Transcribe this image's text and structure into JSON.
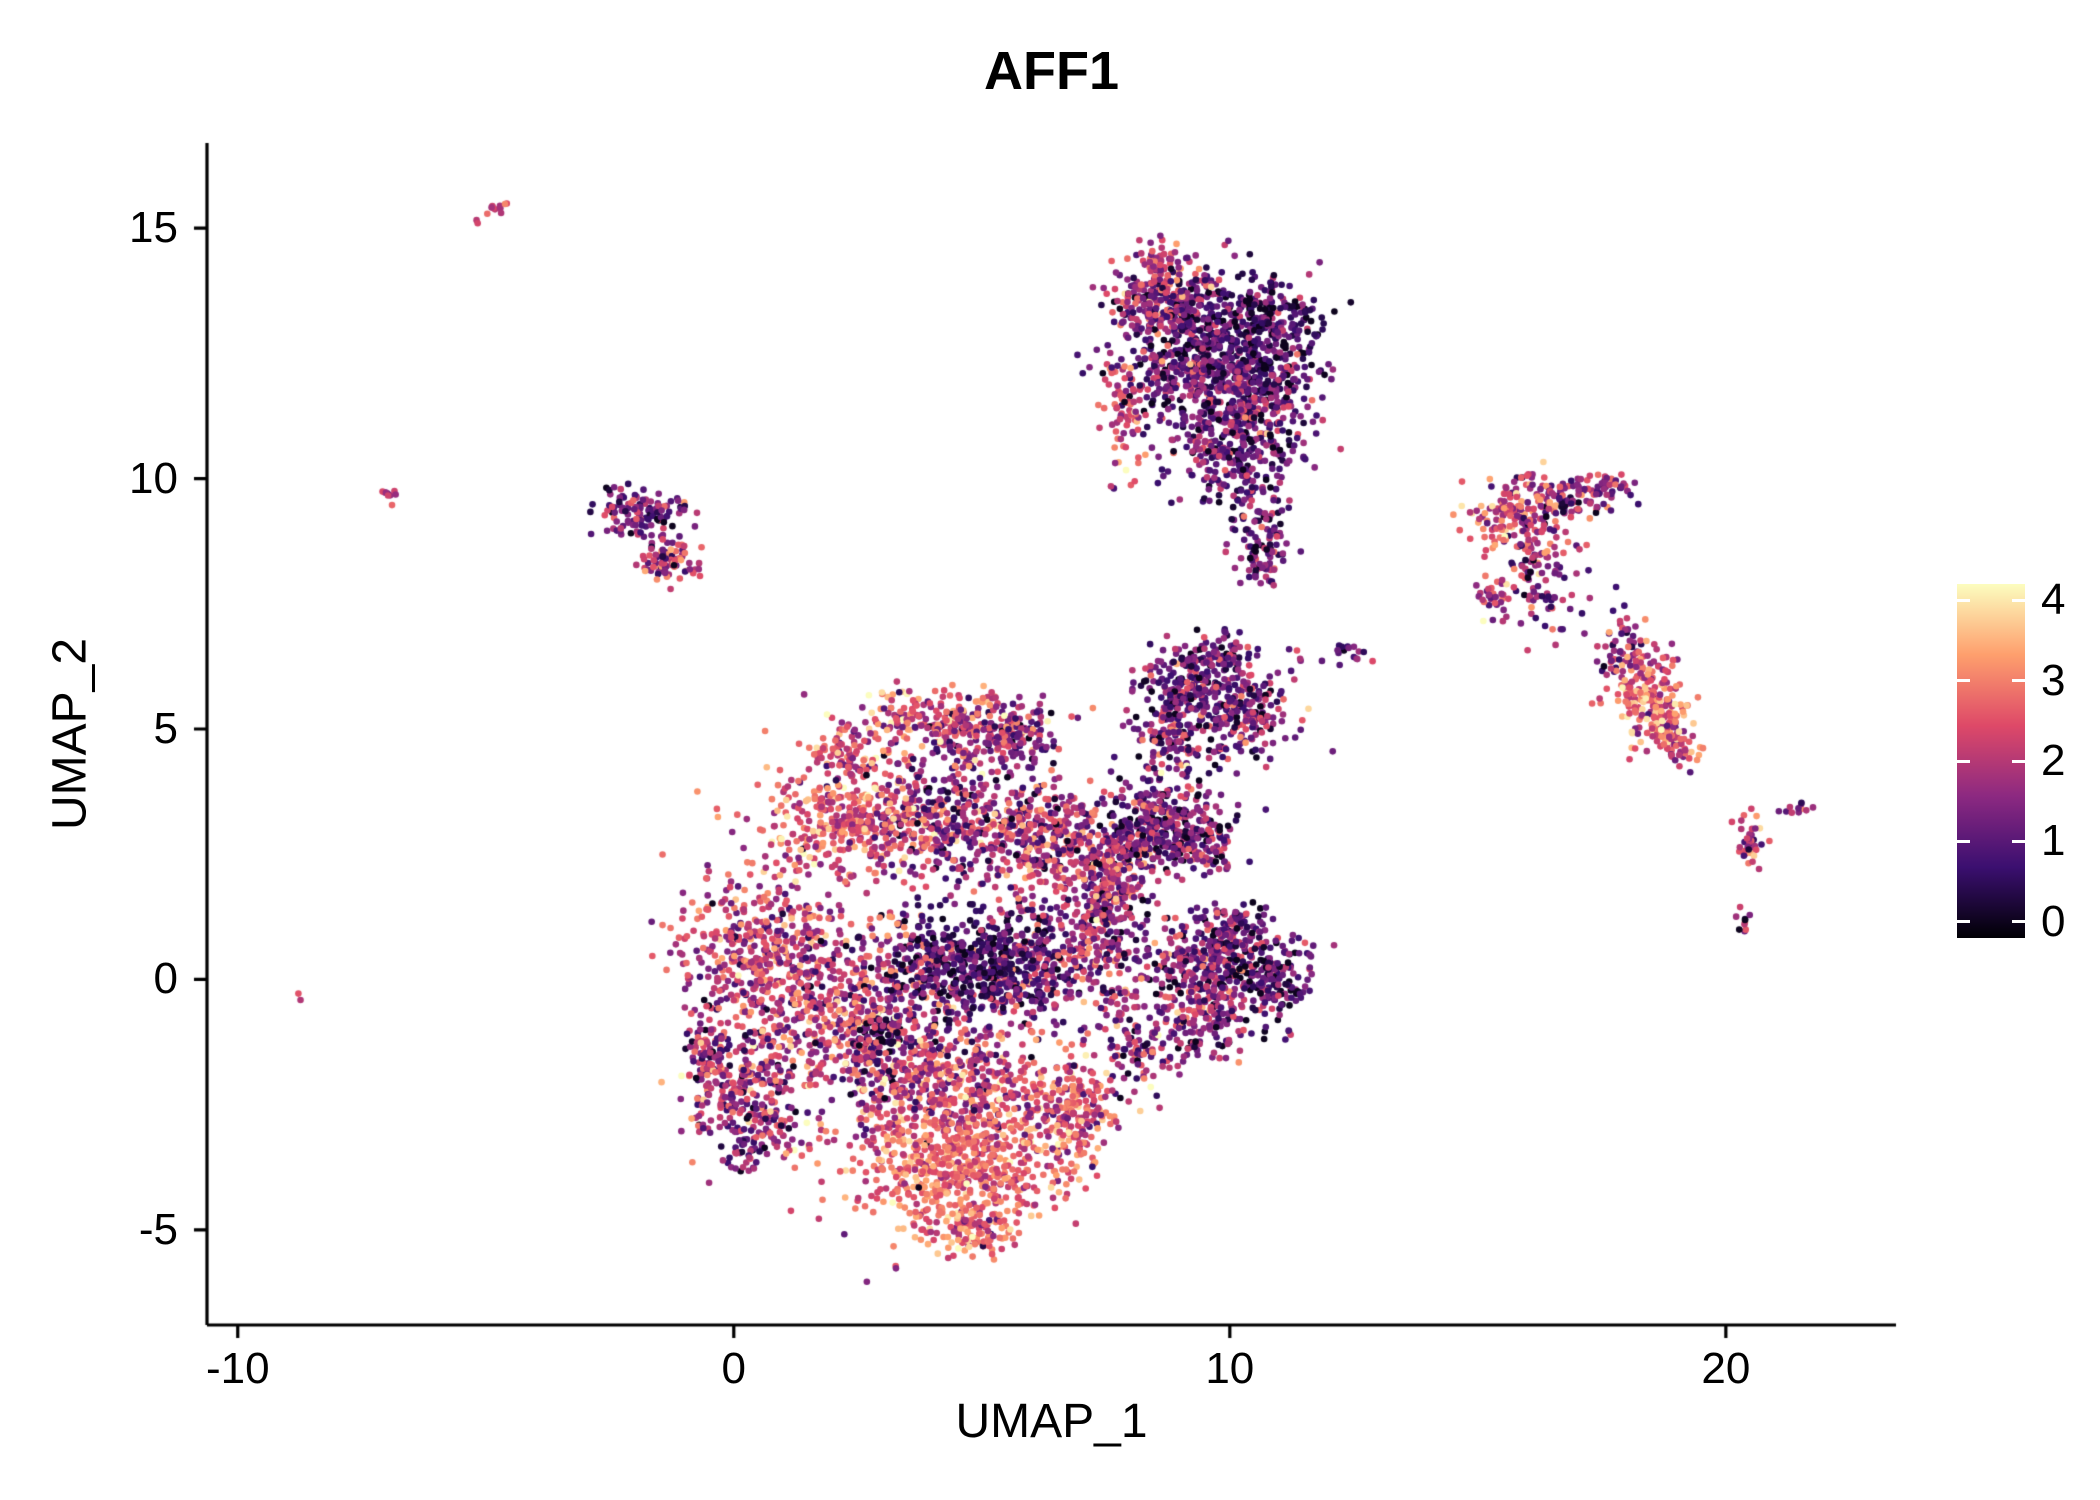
{
  "chart_data": {
    "type": "scatter",
    "title": "AFF1",
    "xlabel": "UMAP_1",
    "ylabel": "UMAP_2",
    "x_range": [
      -10.62,
      23.43
    ],
    "y_range": [
      -6.9,
      16.7
    ],
    "x_ticks": [
      -10,
      0,
      10,
      20
    ],
    "y_ticks": [
      -5,
      0,
      5,
      10,
      15
    ],
    "grid": false,
    "background": "#ffffff",
    "axis_color": "#000000",
    "point_radius_px": 3.3,
    "seed": 20240612,
    "colorbar": {
      "position": "right",
      "ticks": [
        0,
        1,
        2,
        3,
        4
      ],
      "range": [
        -0.2,
        4.2
      ],
      "colormap": [
        [
          0.0,
          "#000004"
        ],
        [
          0.2,
          "#3B0F70"
        ],
        [
          0.4,
          "#8C2981"
        ],
        [
          0.6,
          "#DE4968"
        ],
        [
          0.8,
          "#FE9F6D"
        ],
        [
          1.0,
          "#FCFDBF"
        ]
      ]
    },
    "cluster_fields": [
      "x",
      "y",
      "sx",
      "sy",
      "n",
      "expr_mean",
      "expr_sd",
      "rot_deg"
    ],
    "clusters": [
      [
        -4.85,
        15.35,
        0.22,
        0.07,
        12,
        2.3,
        0.4,
        32
      ],
      [
        -6.9,
        9.65,
        0.13,
        0.07,
        9,
        2.0,
        0.5,
        0
      ],
      [
        -8.8,
        -0.4,
        0.05,
        0.05,
        2,
        2.2,
        0.2,
        0
      ],
      [
        -1.9,
        9.3,
        0.42,
        0.25,
        120,
        1.3,
        0.8,
        0
      ],
      [
        -1.35,
        8.35,
        0.3,
        0.22,
        80,
        1.9,
        0.9,
        0
      ],
      [
        8.6,
        13.6,
        0.5,
        0.4,
        240,
        1.6,
        0.9,
        0
      ],
      [
        10.2,
        13.0,
        0.8,
        0.55,
        450,
        0.8,
        0.7,
        0
      ],
      [
        9.3,
        12.0,
        0.8,
        0.6,
        400,
        1.1,
        0.8,
        0
      ],
      [
        10.8,
        11.6,
        0.5,
        0.6,
        250,
        1.0,
        0.8,
        0
      ],
      [
        10.0,
        10.5,
        0.6,
        0.5,
        200,
        1.2,
        0.8,
        0
      ],
      [
        7.85,
        11.3,
        0.2,
        0.55,
        70,
        2.3,
        0.6,
        0
      ],
      [
        8.5,
        14.3,
        0.2,
        0.3,
        40,
        1.8,
        0.8,
        0
      ],
      [
        10.6,
        9.3,
        0.3,
        0.6,
        90,
        1.1,
        0.8,
        0
      ],
      [
        10.7,
        8.3,
        0.2,
        0.25,
        40,
        1.4,
        0.8,
        0
      ],
      [
        15.8,
        9.3,
        0.5,
        0.35,
        160,
        2.4,
        0.9,
        0
      ],
      [
        16.8,
        9.6,
        0.45,
        0.2,
        70,
        1.7,
        0.9,
        0
      ],
      [
        17.6,
        9.8,
        0.25,
        0.15,
        40,
        1.8,
        0.8,
        0
      ],
      [
        16.2,
        8.4,
        0.3,
        0.45,
        80,
        1.6,
        0.9,
        0
      ],
      [
        15.3,
        7.7,
        0.2,
        0.25,
        30,
        2.0,
        0.8,
        0
      ],
      [
        16.5,
        7.3,
        0.4,
        0.3,
        25,
        1.5,
        0.9,
        0
      ],
      [
        18.0,
        6.6,
        0.25,
        0.3,
        60,
        1.6,
        0.9,
        0
      ],
      [
        18.4,
        5.8,
        0.35,
        0.45,
        150,
        2.6,
        0.8,
        0
      ],
      [
        18.85,
        5.0,
        0.3,
        0.3,
        80,
        2.8,
        0.7,
        0
      ],
      [
        19.1,
        4.6,
        0.2,
        0.2,
        30,
        2.4,
        0.8,
        0
      ],
      [
        20.5,
        2.8,
        0.15,
        0.3,
        35,
        2.0,
        0.9,
        0
      ],
      [
        21.4,
        3.4,
        0.2,
        0.07,
        12,
        1.6,
        0.6,
        15
      ],
      [
        20.35,
        1.2,
        0.1,
        0.15,
        10,
        1.8,
        0.7,
        0
      ],
      [
        12.5,
        6.55,
        0.25,
        0.08,
        12,
        1.2,
        0.7,
        0
      ],
      [
        11.9,
        6.4,
        0.4,
        0.12,
        8,
        1.4,
        0.8,
        0
      ],
      [
        9.2,
        5.9,
        0.55,
        0.4,
        220,
        1.1,
        0.8,
        0
      ],
      [
        10.3,
        5.3,
        0.5,
        0.45,
        180,
        1.3,
        0.9,
        0
      ],
      [
        8.9,
        4.8,
        0.4,
        0.35,
        120,
        1.5,
        0.9,
        0
      ],
      [
        9.9,
        6.5,
        0.25,
        0.2,
        50,
        1.2,
        0.8,
        0
      ],
      [
        8.7,
        3.1,
        0.6,
        0.45,
        300,
        1.1,
        0.9,
        0
      ],
      [
        9.5,
        2.6,
        0.3,
        0.3,
        80,
        1.4,
        0.9,
        0
      ],
      [
        7.9,
        2.4,
        0.3,
        0.4,
        80,
        1.6,
        1.0,
        0
      ],
      [
        9.8,
        0.3,
        0.7,
        0.5,
        350,
        1.2,
        0.9,
        0
      ],
      [
        10.9,
        -0.1,
        0.35,
        0.4,
        120,
        0.9,
        0.8,
        0
      ],
      [
        9.4,
        -0.9,
        0.45,
        0.35,
        120,
        1.4,
        0.9,
        0
      ],
      [
        10.1,
        1.1,
        0.3,
        0.2,
        60,
        1.3,
        0.8,
        0
      ],
      [
        8.2,
        -1.4,
        0.4,
        0.5,
        90,
        1.6,
        1.0,
        0
      ],
      [
        4.1,
        5.2,
        0.9,
        0.3,
        220,
        2.4,
        0.8,
        0
      ],
      [
        5.6,
        4.9,
        0.5,
        0.3,
        120,
        1.5,
        0.9,
        0
      ],
      [
        2.2,
        4.5,
        0.3,
        0.3,
        70,
        2.2,
        0.8,
        0
      ],
      [
        4.3,
        4.2,
        1.0,
        0.4,
        100,
        1.8,
        0.9,
        0
      ],
      [
        2.4,
        3.2,
        1.0,
        0.5,
        350,
        2.6,
        0.7,
        0
      ],
      [
        4.5,
        3.1,
        0.9,
        0.5,
        300,
        1.7,
        0.95,
        0
      ],
      [
        6.4,
        2.8,
        0.7,
        0.55,
        280,
        1.9,
        0.95,
        0
      ],
      [
        7.5,
        1.9,
        0.3,
        0.4,
        80,
        1.7,
        0.9,
        0
      ],
      [
        7.4,
        0.9,
        0.5,
        0.9,
        280,
        1.8,
        0.95,
        0
      ],
      [
        0.6,
        0.6,
        0.9,
        0.8,
        450,
        2.1,
        0.85,
        0
      ],
      [
        0.2,
        -2.0,
        0.7,
        0.8,
        300,
        1.9,
        0.9,
        0
      ],
      [
        0.6,
        -3.2,
        0.4,
        0.4,
        80,
        1.6,
        0.9,
        0
      ],
      [
        -0.6,
        -1.6,
        0.2,
        0.6,
        60,
        1.7,
        0.9,
        0
      ],
      [
        2.7,
        -0.8,
        0.9,
        0.9,
        450,
        1.9,
        0.95,
        0
      ],
      [
        4.7,
        0.3,
        0.85,
        0.55,
        450,
        0.7,
        0.55,
        0
      ],
      [
        3.0,
        -1.1,
        0.2,
        0.2,
        40,
        0.3,
        0.3,
        0
      ],
      [
        6.0,
        0.3,
        0.55,
        0.55,
        200,
        1.4,
        0.9,
        0
      ],
      [
        4.4,
        -2.1,
        1.0,
        0.6,
        400,
        2.2,
        0.9,
        0
      ],
      [
        4.5,
        -3.7,
        1.1,
        0.65,
        600,
        2.8,
        0.6,
        0
      ],
      [
        6.8,
        -2.6,
        0.5,
        0.6,
        220,
        2.4,
        0.8,
        0
      ],
      [
        4.7,
        -5.0,
        0.5,
        0.25,
        100,
        2.6,
        0.7,
        0
      ],
      [
        4.2,
        -0.2,
        2.0,
        2.2,
        180,
        1.8,
        1.0,
        0
      ]
    ]
  }
}
